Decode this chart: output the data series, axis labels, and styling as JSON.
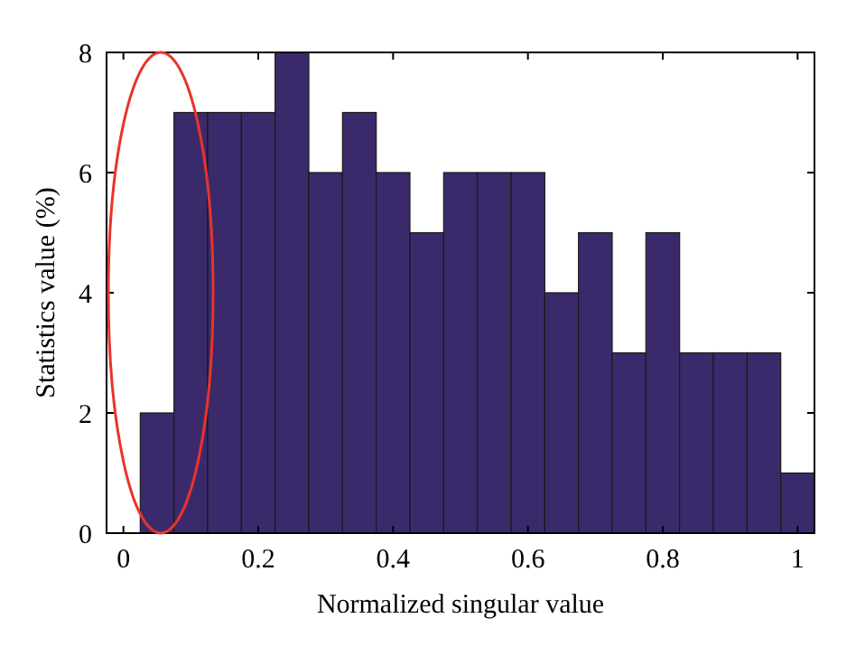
{
  "chart_data": {
    "type": "histogram",
    "xlabel": "Normalized singular value",
    "ylabel": "Statistics value (%)",
    "bins": [
      0.025,
      0.075,
      0.125,
      0.175,
      0.225,
      0.275,
      0.325,
      0.375,
      0.425,
      0.475,
      0.525,
      0.575,
      0.625,
      0.675,
      0.725,
      0.775,
      0.825,
      0.875,
      0.925,
      0.975,
      1.025
    ],
    "values": [
      2,
      7,
      7,
      7,
      8,
      6,
      7,
      6,
      5,
      6,
      6,
      6,
      4,
      5,
      3,
      5,
      3,
      3,
      3,
      1
    ],
    "color": "#3b2a6b",
    "xlim": [
      -0.025,
      1.025
    ],
    "xticks": [
      0,
      0.2,
      0.4,
      0.6,
      0.8,
      1
    ],
    "ylim": [
      0,
      8
    ],
    "yticks": [
      0,
      2,
      4,
      6,
      8
    ],
    "grid": false
  }
}
